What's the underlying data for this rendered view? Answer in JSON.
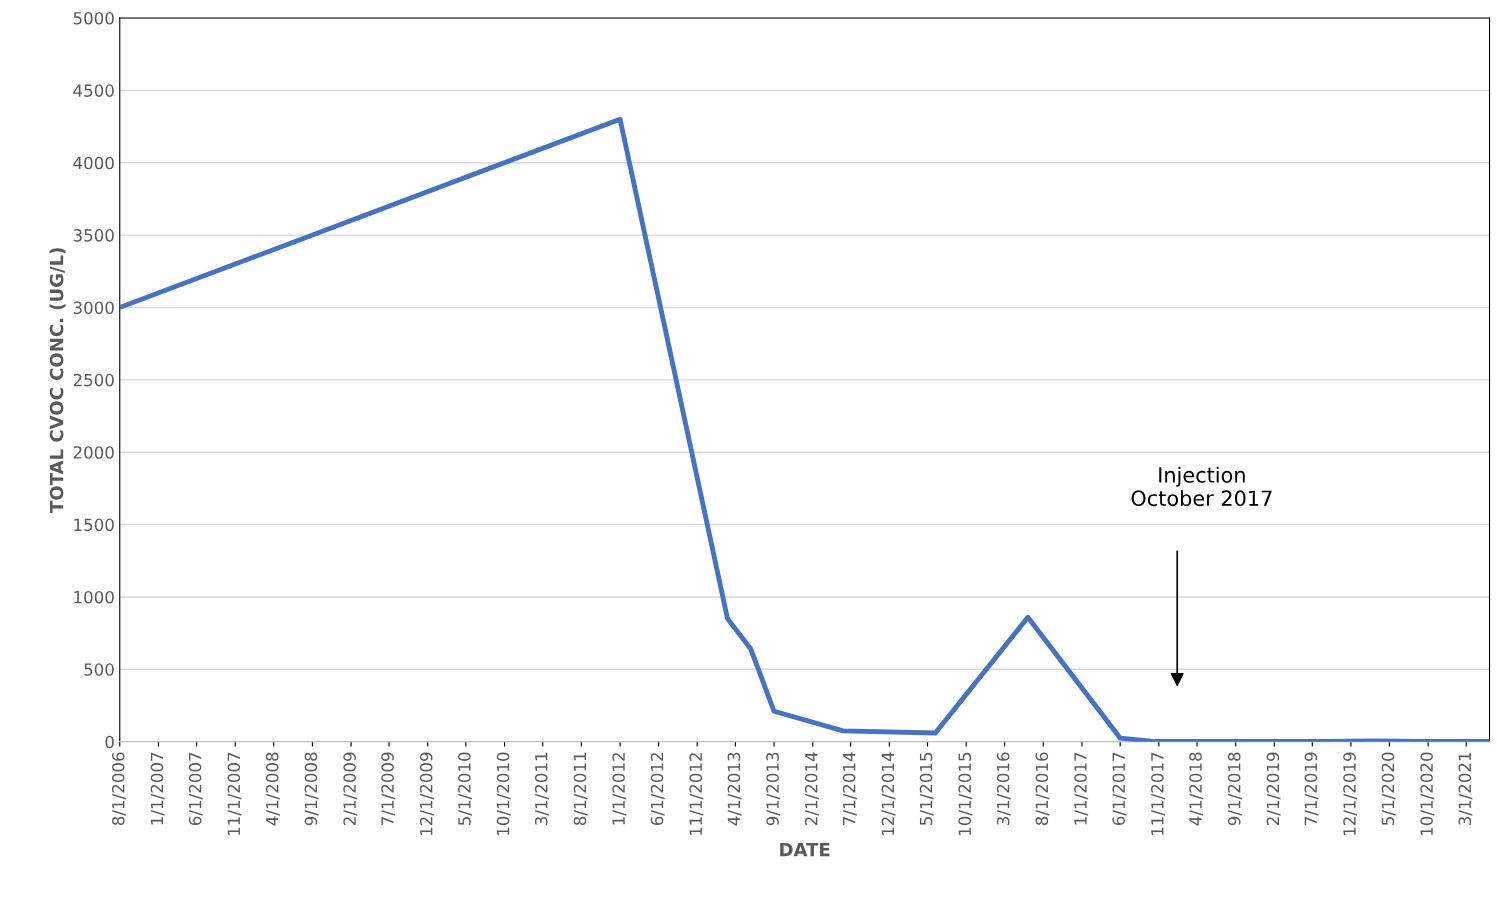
{
  "chart_data": {
    "type": "line",
    "xlabel": "DATE",
    "ylabel": "TOTAL CVOC CONC. (UG/L)",
    "x": [
      "2006-08-01",
      "2012-01-01",
      "2013-03-01",
      "2013-06-01",
      "2013-09-01",
      "2014-06-01",
      "2015-06-01",
      "2016-06-01",
      "2017-06-01",
      "2017-10-01",
      "2018-03-01",
      "2018-09-01",
      "2019-03-01",
      "2019-09-01",
      "2020-03-01",
      "2020-09-01",
      "2021-06-01"
    ],
    "series": [
      {
        "color": "#4472c4",
        "values": [
          3000,
          4300,
          850,
          640,
          210,
          75,
          60,
          860,
          25,
          3,
          2,
          2,
          2,
          2,
          5,
          2,
          2
        ]
      }
    ],
    "xlim": [
      "2006-08-01",
      "2021-06-01"
    ],
    "xticks": [
      {
        "value": "2006-08-01",
        "label": "8/1/2006"
      },
      {
        "value": "2007-01-01",
        "label": "1/1/2007"
      },
      {
        "value": "2007-06-01",
        "label": "6/1/2007"
      },
      {
        "value": "2007-11-01",
        "label": "11/1/2007"
      },
      {
        "value": "2008-04-01",
        "label": "4/1/2008"
      },
      {
        "value": "2008-09-01",
        "label": "9/1/2008"
      },
      {
        "value": "2009-02-01",
        "label": "2/1/2009"
      },
      {
        "value": "2009-07-01",
        "label": "7/1/2009"
      },
      {
        "value": "2009-12-01",
        "label": "12/1/2009"
      },
      {
        "value": "2010-05-01",
        "label": "5/1/2010"
      },
      {
        "value": "2010-10-01",
        "label": "10/1/2010"
      },
      {
        "value": "2011-03-01",
        "label": "3/1/2011"
      },
      {
        "value": "2011-08-01",
        "label": "8/1/2011"
      },
      {
        "value": "2012-01-01",
        "label": "1/1/2012"
      },
      {
        "value": "2012-06-01",
        "label": "6/1/2012"
      },
      {
        "value": "2012-11-01",
        "label": "11/1/2012"
      },
      {
        "value": "2013-04-01",
        "label": "4/1/2013"
      },
      {
        "value": "2013-09-01",
        "label": "9/1/2013"
      },
      {
        "value": "2014-02-01",
        "label": "2/1/2014"
      },
      {
        "value": "2014-07-01",
        "label": "7/1/2014"
      },
      {
        "value": "2014-12-01",
        "label": "12/1/2014"
      },
      {
        "value": "2015-05-01",
        "label": "5/1/2015"
      },
      {
        "value": "2015-10-01",
        "label": "10/1/2015"
      },
      {
        "value": "2016-03-01",
        "label": "3/1/2016"
      },
      {
        "value": "2016-08-01",
        "label": "8/1/2016"
      },
      {
        "value": "2017-01-01",
        "label": "1/1/2017"
      },
      {
        "value": "2017-06-01",
        "label": "6/1/2017"
      },
      {
        "value": "2017-11-01",
        "label": "11/1/2017"
      },
      {
        "value": "2018-04-01",
        "label": "4/1/2018"
      },
      {
        "value": "2018-09-01",
        "label": "9/1/2018"
      },
      {
        "value": "2019-02-01",
        "label": "2/1/2019"
      },
      {
        "value": "2019-07-01",
        "label": "7/1/2019"
      },
      {
        "value": "2019-12-01",
        "label": "12/1/2019"
      },
      {
        "value": "2020-05-01",
        "label": "5/1/2020"
      },
      {
        "value": "2020-10-01",
        "label": "10/1/2020"
      },
      {
        "value": "2021-03-01",
        "label": "3/1/2021"
      }
    ],
    "ylim": [
      0,
      5000
    ],
    "yticks": [
      0,
      500,
      1000,
      1500,
      2000,
      2500,
      3000,
      3500,
      4000,
      4500,
      5000
    ],
    "grid": "y",
    "marker": "none",
    "line_style": "solid",
    "annotations": [
      "Injection\nOctober 2017"
    ]
  }
}
